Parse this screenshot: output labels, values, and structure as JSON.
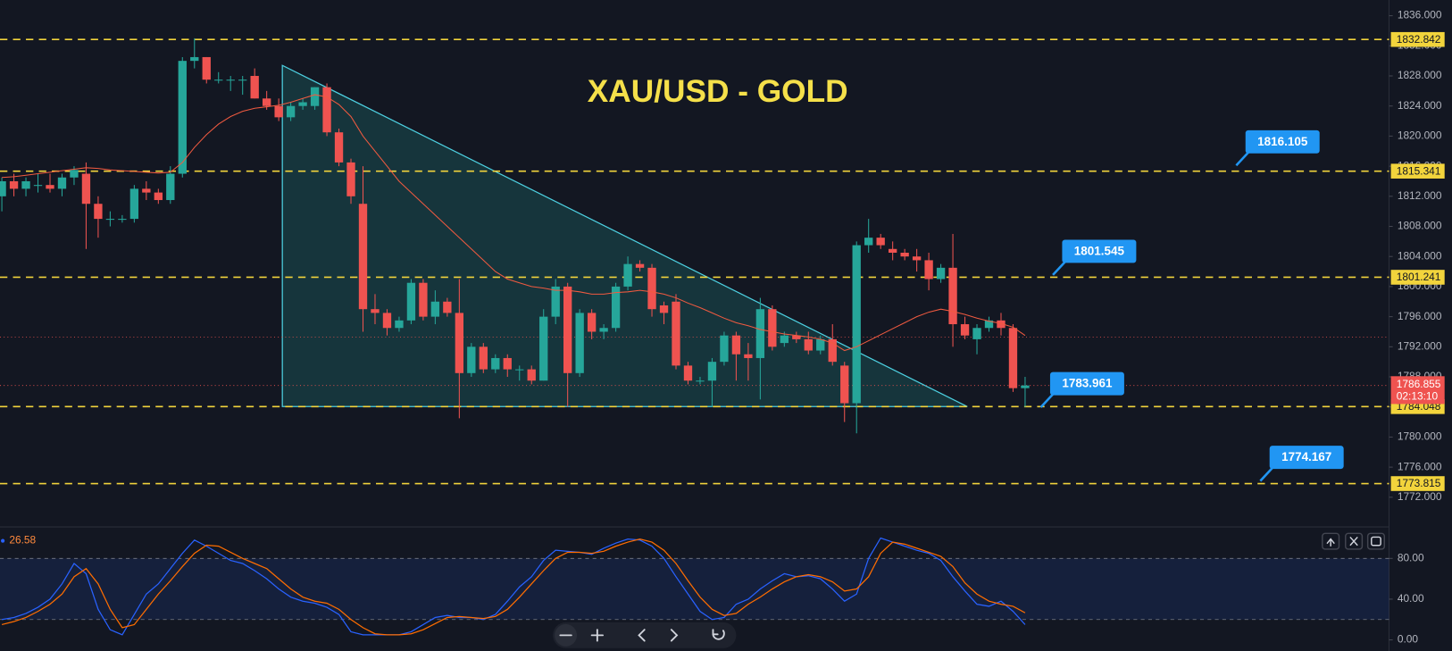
{
  "chart_data": {
    "type": "candlestick",
    "title": "XAU/USD - GOLD",
    "open": [
      1812,
      1814,
      1813,
      1813.5,
      1813.5,
      1813,
      1814.5,
      1815,
      1811,
      1809,
      1809,
      1809,
      1813,
      1812.5,
      1811.5,
      1815,
      1830,
      1830.5,
      1827.5,
      1827.5,
      1827.5,
      1828,
      1825,
      1824,
      1822.5,
      1824,
      1824,
      1826.5,
      1820.5,
      1816.5,
      1811,
      1797,
      1796.5,
      1794.5,
      1795.5,
      1800.5,
      1796,
      1798,
      1796.5,
      1788.5,
      1792,
      1789,
      1790.5,
      1789,
      1789,
      1787.5,
      1796,
      1800,
      1788.5,
      1796.5,
      1794,
      1794.5,
      1800,
      1803,
      1802.5,
      1797.5,
      1798,
      1789.5,
      1787.5,
      1787.5,
      1790,
      1793.5,
      1791,
      1790.5,
      1797,
      1792.5,
      1793.5,
      1793,
      1791.5,
      1793,
      1789.5,
      1784.5,
      1805.5,
      1806.5,
      1805,
      1804.5,
      1804,
      1803.5,
      1801,
      1802.5,
      1795,
      1793,
      1794.5,
      1795.5,
      1794.5,
      1786.5
    ],
    "high": [
      1814.5,
      1815,
      1814.5,
      1815,
      1815,
      1815,
      1816,
      1816.5,
      1812,
      1810,
      1809.5,
      1813.5,
      1814,
      1813,
      1816,
      1830.5,
      1833,
      1830.5,
      1828.5,
      1828,
      1828,
      1829,
      1826,
      1825,
      1824.5,
      1825,
      1826.5,
      1827,
      1821,
      1817,
      1816,
      1799,
      1797,
      1796,
      1801,
      1801,
      1799.5,
      1798.5,
      1801,
      1792.5,
      1792.5,
      1791,
      1791,
      1789.5,
      1789.5,
      1797,
      1801,
      1800.5,
      1797,
      1797,
      1795,
      1800.5,
      1804,
      1803.5,
      1803,
      1798,
      1799,
      1790,
      1788,
      1790.5,
      1794,
      1794,
      1792.5,
      1798.5,
      1797.5,
      1794,
      1794,
      1794,
      1793.5,
      1795,
      1790,
      1806,
      1809,
      1807,
      1806,
      1805,
      1805,
      1804.5,
      1803,
      1807,
      1796,
      1795,
      1796,
      1796.5,
      1795,
      1788
    ],
    "low": [
      1810,
      1812,
      1812,
      1812.5,
      1812.5,
      1812,
      1813.5,
      1805,
      1806.5,
      1808,
      1808.5,
      1808.5,
      1811.5,
      1811,
      1811,
      1814.5,
      1829,
      1827,
      1827,
      1826,
      1825.5,
      1825,
      1823.5,
      1822,
      1822,
      1823.5,
      1823.5,
      1820,
      1816,
      1811,
      1794,
      1795,
      1793.5,
      1794,
      1795,
      1795.5,
      1795,
      1796,
      1782.5,
      1788,
      1788.5,
      1788.5,
      1788,
      1787.5,
      1787,
      1787.5,
      1795,
      1784,
      1788,
      1793,
      1793,
      1794,
      1799.5,
      1802,
      1796,
      1795,
      1789,
      1787,
      1787,
      1784,
      1789.5,
      1787.5,
      1787.5,
      1785,
      1791.5,
      1792,
      1792.5,
      1791,
      1791,
      1789.5,
      1782,
      1780.5,
      1804.5,
      1805,
      1803.5,
      1803.5,
      1802,
      1799.5,
      1800.5,
      1792,
      1793,
      1791,
      1794,
      1793.5,
      1786,
      1784
    ],
    "close": [
      1814,
      1813,
      1814,
      1813.5,
      1813,
      1814.5,
      1815.5,
      1811,
      1809,
      1809,
      1809,
      1813,
      1812.5,
      1811.5,
      1815,
      1830,
      1830.5,
      1827.5,
      1827.5,
      1827.5,
      1827.5,
      1825,
      1824,
      1822.5,
      1824,
      1824.5,
      1826.5,
      1820.5,
      1816.5,
      1812,
      1797,
      1796.5,
      1794.5,
      1795.5,
      1800.5,
      1796,
      1798,
      1796.5,
      1788.5,
      1792,
      1789,
      1790.5,
      1789,
      1789,
      1787.5,
      1796,
      1800,
      1788.5,
      1796.5,
      1794,
      1794.5,
      1800,
      1803,
      1802.5,
      1797,
      1796.5,
      1789.5,
      1787.5,
      1787.5,
      1790,
      1793.5,
      1791,
      1790.5,
      1797,
      1792,
      1793.5,
      1793,
      1791.5,
      1793,
      1790,
      1784.5,
      1805.5,
      1806.5,
      1805.5,
      1804.5,
      1804,
      1803.5,
      1801,
      1802.5,
      1795,
      1793.5,
      1794.5,
      1795.5,
      1794.5,
      1786.5,
      1786.855
    ],
    "ma": [
      1814.5,
      1814.6,
      1814.8,
      1815,
      1815.2,
      1815.4,
      1815.6,
      1815.8,
      1815.7,
      1815.5,
      1815.4,
      1815.3,
      1815.2,
      1815.1,
      1815.2,
      1816.5,
      1818.5,
      1820.2,
      1821.6,
      1822.6,
      1823.3,
      1823.7,
      1823.9,
      1824.1,
      1824.5,
      1825,
      1825.5,
      1825.2,
      1824.2,
      1822.6,
      1820,
      1818,
      1816,
      1814,
      1812.5,
      1811,
      1809.5,
      1808,
      1806.5,
      1805,
      1803.5,
      1802,
      1801,
      1800.5,
      1800,
      1799.8,
      1799.5,
      1799.5,
      1799.3,
      1799,
      1799,
      1799.2,
      1799.3,
      1799.5,
      1799.3,
      1799,
      1798.5,
      1797.8,
      1797.2,
      1796.5,
      1795.8,
      1795.2,
      1794.8,
      1794.3,
      1794,
      1793.7,
      1793.5,
      1793.3,
      1793,
      1792.5,
      1791.5,
      1792,
      1792.8,
      1793.6,
      1794.4,
      1795.2,
      1796,
      1796.6,
      1797,
      1796.7,
      1796.3,
      1795.8,
      1795.4,
      1795.1,
      1794.6,
      1793.5
    ],
    "up_color": "#26a69a",
    "down_color": "#ef5350",
    "ma_color": "#f05a40",
    "ylim": [
      1768.18,
      1838.09
    ],
    "yticks": [
      {
        "value": 1772,
        "label": "1772.000"
      },
      {
        "value": 1776,
        "label": "1776.000"
      },
      {
        "value": 1780,
        "label": "1780.000"
      },
      {
        "value": 1784,
        "label": "1784.000"
      },
      {
        "value": 1788,
        "label": "1788.000"
      },
      {
        "value": 1792,
        "label": "1792.000"
      },
      {
        "value": 1796,
        "label": "1796.000"
      },
      {
        "value": 1800,
        "label": "1800.000"
      },
      {
        "value": 1804,
        "label": "1804.000"
      },
      {
        "value": 1808,
        "label": "1808.000"
      },
      {
        "value": 1812,
        "label": "1812.000"
      },
      {
        "value": 1816,
        "label": "1816.000"
      },
      {
        "value": 1820,
        "label": "1820.000"
      },
      {
        "value": 1824,
        "label": "1824.000"
      },
      {
        "value": 1828,
        "label": "1828.000"
      },
      {
        "value": 1832,
        "label": "1832.000"
      },
      {
        "value": 1836,
        "label": "1836.000"
      }
    ],
    "levels": [
      1832.842,
      1815.341,
      1801.241,
      1784.048,
      1773.815
    ],
    "level_color": "#f2d43c",
    "callouts": [
      1816.105,
      1801.545,
      1783.961,
      1774.167
    ],
    "callout_color": "#2196f3",
    "triangle": [
      [
        23.3,
        1829.4
      ],
      [
        23.3,
        1784.05
      ],
      [
        80.2,
        1784.05
      ]
    ],
    "current_price": 1786.855,
    "countdown": "02:13:10",
    "prev_close": 1793.3,
    "oscillator": {
      "k": [
        20,
        22,
        26,
        32,
        40,
        55,
        75,
        65,
        30,
        10,
        5,
        25,
        45,
        55,
        70,
        85,
        98,
        92,
        85,
        78,
        75,
        68,
        60,
        50,
        42,
        38,
        36,
        32,
        25,
        8,
        5,
        5,
        5,
        5,
        8,
        15,
        22,
        24,
        22,
        22,
        20,
        25,
        38,
        52,
        62,
        78,
        88,
        87,
        86,
        84,
        90,
        95,
        99,
        98,
        92,
        80,
        62,
        45,
        28,
        20,
        22,
        35,
        40,
        50,
        58,
        65,
        62,
        63,
        60,
        50,
        38,
        45,
        80,
        100,
        96,
        92,
        88,
        85,
        78,
        62,
        48,
        35,
        33,
        38,
        28,
        15
      ],
      "d": [
        15,
        18,
        22,
        28,
        35,
        45,
        62,
        70,
        55,
        30,
        12,
        15,
        30,
        45,
        58,
        72,
        85,
        93,
        92,
        86,
        80,
        75,
        70,
        60,
        50,
        42,
        38,
        36,
        30,
        20,
        12,
        6,
        5,
        5,
        6,
        10,
        16,
        22,
        23,
        22,
        21,
        23,
        30,
        42,
        55,
        68,
        80,
        86,
        86,
        85,
        87,
        92,
        96,
        99,
        96,
        88,
        75,
        58,
        42,
        30,
        24,
        26,
        35,
        42,
        50,
        57,
        62,
        64,
        62,
        57,
        48,
        50,
        62,
        85,
        96,
        94,
        90,
        86,
        82,
        72,
        56,
        45,
        38,
        35,
        33,
        26.58
      ],
      "k_color": "#2962ff",
      "d_color": "#ff6d00",
      "ylim": [
        -10.9,
        110
      ],
      "yticks": [
        {
          "value": 0,
          "label": "0.00"
        },
        {
          "value": 40,
          "label": "40.00"
        },
        {
          "value": 80,
          "label": "80.00"
        }
      ],
      "bands": [
        20,
        80
      ]
    }
  }
}
